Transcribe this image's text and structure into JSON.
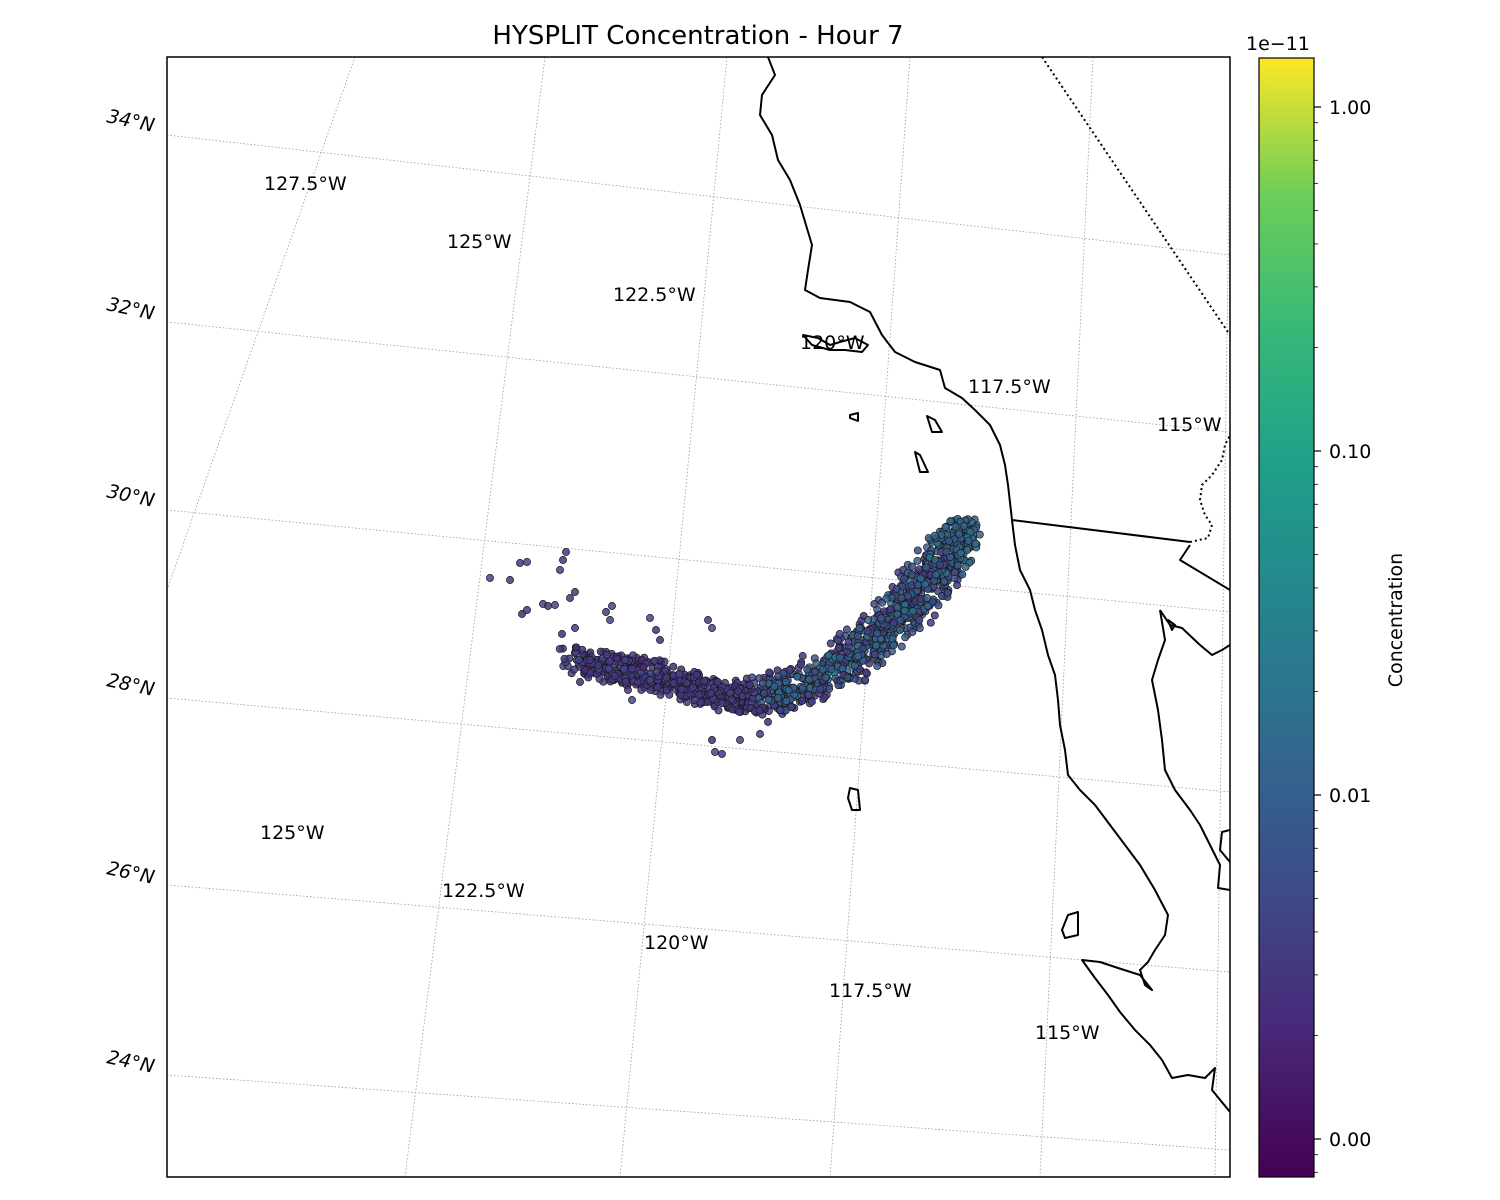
{
  "map": {
    "title": "HYSPLIT Concentration - Hour 7",
    "lat_labels": [
      "34°N",
      "32°N",
      "30°N",
      "28°N",
      "26°N",
      "24°N"
    ],
    "lon_labels_top": [
      "127.5°W",
      "125°W",
      "122.5°W",
      "120°W",
      "117.5°W",
      "115°W"
    ],
    "lon_labels_bottom": [
      "125°W",
      "122.5°W",
      "120°W",
      "117.5°W",
      "115°W"
    ],
    "colors": {
      "coast": "#000000",
      "grid": "#9a9a9a",
      "background": "#ffffff"
    }
  },
  "colorbar": {
    "label": "Concentration",
    "exponent": "1e−11",
    "ticks": [
      "1.00",
      "0.10",
      "0.01",
      "0.00"
    ],
    "colormap": "viridis",
    "scale": "log"
  },
  "plume": {
    "description_colors": {
      "low": "#472c7a",
      "mid": "#3b528b",
      "high": "#2c728e"
    }
  }
}
